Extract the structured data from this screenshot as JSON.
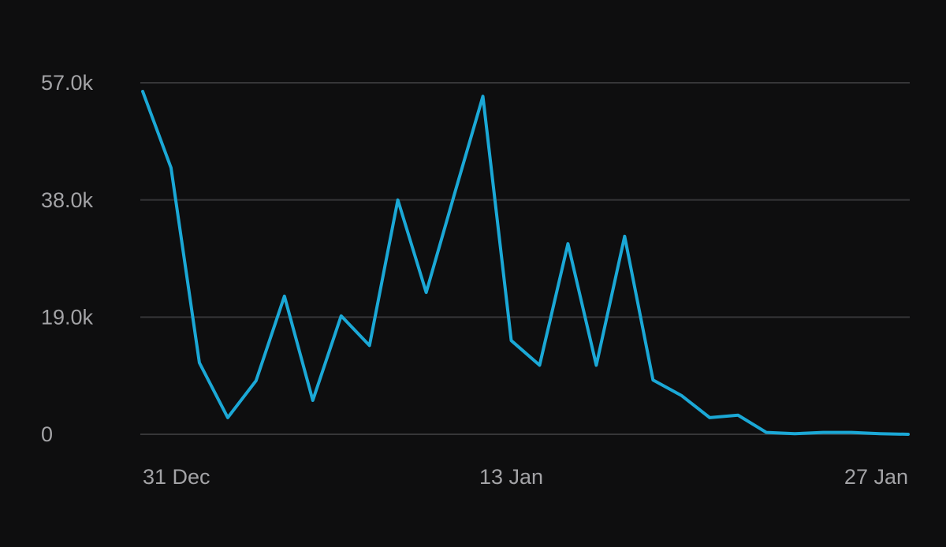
{
  "chart_data": {
    "type": "line",
    "categories": [
      "31 Dec",
      null,
      null,
      null,
      null,
      null,
      null,
      null,
      null,
      null,
      null,
      null,
      null,
      "13 Jan",
      null,
      null,
      null,
      null,
      null,
      null,
      null,
      null,
      null,
      null,
      null,
      null,
      null,
      "27 Jan"
    ],
    "series": [
      {
        "color": "#1ba8d6",
        "values": [
          55600,
          43200,
          11600,
          2700,
          8700,
          22400,
          5500,
          19200,
          14400,
          38000,
          23000,
          39000,
          54800,
          15200,
          11200,
          30900,
          11200,
          32100,
          8800,
          6300,
          2700,
          3100,
          300,
          100,
          300,
          300,
          100,
          0
        ]
      }
    ],
    "ylim": [
      0,
      57000
    ],
    "yticks": [
      0,
      {
        "value": 19000,
        "label": "19.0k"
      },
      {
        "value": 38000,
        "label": "38.0k"
      },
      {
        "value": 57000,
        "label": "57.0k"
      }
    ],
    "grid": true
  }
}
